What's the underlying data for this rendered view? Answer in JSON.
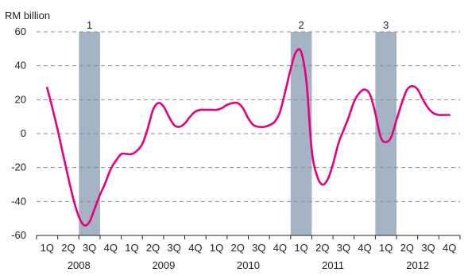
{
  "chart_data": {
    "type": "line",
    "unit_label": "RM billion",
    "ylim": [
      -60,
      60
    ],
    "y_ticks": [
      60,
      40,
      20,
      0,
      -20,
      -40,
      -60
    ],
    "y_tick_labels": [
      "60",
      "40",
      "20",
      "0",
      "-20",
      "-40",
      "-60"
    ],
    "grid": "horizontal dashed",
    "quarter_labels": [
      "1Q",
      "2Q",
      "3Q",
      "4Q",
      "1Q",
      "2Q",
      "3Q",
      "4Q",
      "1Q",
      "2Q",
      "3Q",
      "4Q",
      "1Q",
      "2Q",
      "3Q",
      "4Q",
      "1Q",
      "2Q",
      "3Q",
      "4Q"
    ],
    "years": [
      "2008",
      "2009",
      "2010",
      "2011",
      "2012"
    ],
    "series": [
      {
        "color": "#e6007e",
        "x": [
          0,
          0.25,
          0.5,
          0.75,
          1,
          1.25,
          1.5,
          1.75,
          2,
          2.25,
          2.5,
          2.75,
          3,
          3.25,
          3.5,
          3.75,
          4,
          4.25,
          4.5,
          4.75,
          5,
          5.25,
          5.5,
          5.75,
          6,
          6.25,
          6.5,
          6.75,
          7,
          7.25,
          7.5,
          7.75,
          8,
          8.25,
          8.5,
          8.75,
          9,
          9.25,
          9.5,
          9.75,
          10,
          10.25,
          10.5,
          10.75,
          11,
          11.25,
          11.5,
          11.75,
          12,
          12.25,
          12.5,
          12.75,
          13,
          13.25,
          13.5,
          13.75,
          14,
          14.25,
          14.5,
          14.75,
          15,
          15.25,
          15.5,
          15.75,
          16,
          16.25,
          16.5,
          16.75,
          17,
          17.25,
          17.5,
          17.75,
          18,
          18.25,
          18.5,
          18.75,
          19
        ],
        "values": [
          27,
          15,
          2,
          -12,
          -26,
          -39,
          -49,
          -54,
          -52,
          -44,
          -36,
          -29,
          -21,
          -16,
          -12,
          -12,
          -12,
          -10,
          -6,
          3,
          14,
          18,
          16,
          10,
          5,
          4,
          6,
          10,
          13,
          14,
          14,
          14,
          14,
          15,
          17,
          18,
          18,
          15,
          9,
          5,
          4,
          4,
          5,
          7,
          13,
          25,
          38,
          48,
          48,
          30,
          -10,
          -25,
          -30,
          -27,
          -18,
          -6,
          2,
          10,
          19,
          24,
          26,
          23,
          12,
          -2,
          -5,
          -2,
          8,
          18,
          26,
          28,
          26,
          20,
          15,
          12,
          11,
          11,
          11
        ]
      }
    ],
    "shaded_periods": [
      {
        "label": "1",
        "x_start": 1.5,
        "x_end": 2.5
      },
      {
        "label": "2",
        "x_start": 11.5,
        "x_end": 12.5
      },
      {
        "label": "3",
        "x_start": 15.5,
        "x_end": 16.5
      }
    ],
    "colors": {
      "line": "#e6007e",
      "band": "#a5b4c4",
      "grid": "#8c8c8c",
      "axis": "#222222"
    }
  }
}
